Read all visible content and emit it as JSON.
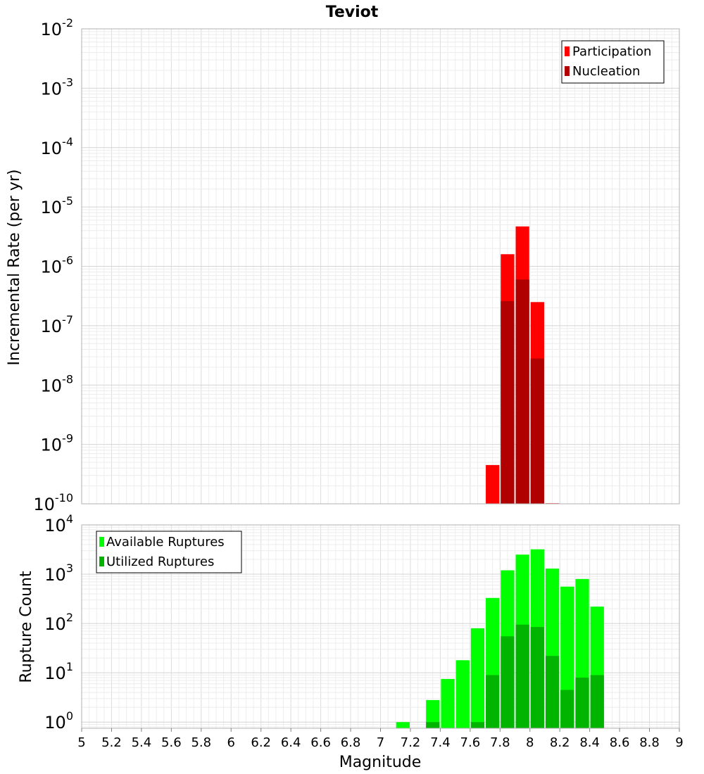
{
  "chart_data": [
    {
      "type": "bar",
      "title": "Teviot",
      "ylabel": "Incremental Rate (per yr)",
      "yscale": "log",
      "ylim": [
        1e-10,
        0.01
      ],
      "xlim": [
        5,
        9
      ],
      "bar_width": 0.1,
      "y_tick_exponents": [
        -10,
        -9,
        -8,
        -7,
        -6,
        -5,
        -4,
        -3,
        -2
      ],
      "y_tick_base": "10",
      "grid": true,
      "legend": {
        "placement": "top-right",
        "entries": [
          {
            "label": "Participation",
            "color": "#ff0000"
          },
          {
            "label": "Nucleation",
            "color": "#b00000"
          }
        ]
      },
      "series": [
        {
          "name": "Participation",
          "color": "#ff0000",
          "x": [
            7.75,
            7.85,
            7.95,
            8.05,
            8.15
          ],
          "values": [
            4.5e-10,
            1.6e-06,
            4.7e-06,
            2.5e-07,
            1e-10
          ]
        },
        {
          "name": "Nucleation",
          "color": "#b00000",
          "x": [
            7.85,
            7.95,
            8.05
          ],
          "values": [
            2.6e-07,
            6e-07,
            2.8e-08
          ]
        }
      ]
    },
    {
      "type": "bar",
      "ylabel": "Rupture Count",
      "xlabel": "Magnitude",
      "yscale": "log",
      "ylim": [
        0.75,
        10000
      ],
      "xlim": [
        5,
        9
      ],
      "bar_width": 0.1,
      "y_tick_exponents": [
        0,
        1,
        2,
        3,
        4
      ],
      "y_tick_base": "10",
      "x_ticks": [
        "5",
        "5.2",
        "5.4",
        "5.6",
        "5.8",
        "6",
        "6.2",
        "6.4",
        "6.6",
        "6.8",
        "7",
        "7.2",
        "7.4",
        "7.6",
        "7.8",
        "8",
        "8.2",
        "8.4",
        "8.6",
        "8.8",
        "9"
      ],
      "grid": true,
      "legend": {
        "placement": "top-left",
        "entries": [
          {
            "label": "Available Ruptures",
            "color": "#00ff00"
          },
          {
            "label": "Utilized Ruptures",
            "color": "#00b400"
          }
        ]
      },
      "series": [
        {
          "name": "Available Ruptures",
          "color": "#00ff00",
          "x": [
            7.15,
            7.35,
            7.45,
            7.55,
            7.65,
            7.75,
            7.85,
            7.95,
            8.05,
            8.15,
            8.25,
            8.35,
            8.45
          ],
          "values": [
            1,
            2.8,
            7.5,
            18,
            80,
            330,
            1200,
            2500,
            3200,
            1300,
            560,
            800,
            220
          ]
        },
        {
          "name": "Utilized Ruptures",
          "color": "#00b400",
          "x": [
            7.35,
            7.65,
            7.75,
            7.85,
            7.95,
            8.05,
            8.15,
            8.25,
            8.35,
            8.45
          ],
          "values": [
            1,
            1,
            9,
            55,
            95,
            85,
            22,
            4.5,
            8,
            9
          ]
        }
      ]
    }
  ]
}
